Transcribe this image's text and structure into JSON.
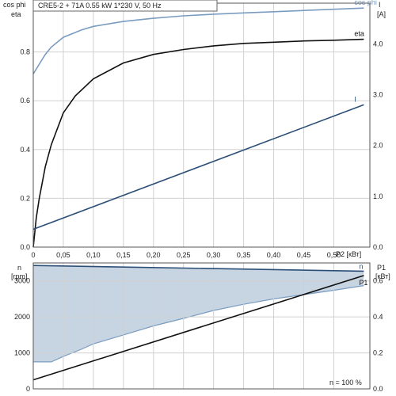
{
  "title": "CRE5-2 + 71A   0.55 kW   1*230 V, 50 Hz",
  "chart_data": [
    {
      "type": "line",
      "name": "upper",
      "left_axis_labels": [
        "cos phi",
        "eta"
      ],
      "right_axis_labels": [
        "I",
        "[A]"
      ],
      "xlim": [
        0,
        0.56
      ],
      "ylim_left": [
        0,
        1.0
      ],
      "ylim_right": [
        0,
        4.8
      ],
      "x_ticks": [
        "0",
        "0,05",
        "0,10",
        "0,15",
        "0,20",
        "0,25",
        "0,30",
        "0,35",
        "0,40",
        "0,45",
        "0,50"
      ],
      "x_tick_values": [
        0,
        0.05,
        0.1,
        0.15,
        0.2,
        0.25,
        0.3,
        0.35,
        0.4,
        0.45,
        0.5
      ],
      "x_unit_label": "P2 [кВт]",
      "y_left_ticks": [
        "0.0",
        "0.2",
        "0.4",
        "0.6",
        "0.8"
      ],
      "y_left_tick_values": [
        0,
        0.2,
        0.4,
        0.6,
        0.8
      ],
      "y_right_ticks": [
        "0.0",
        "1.0",
        "2.0",
        "3.0",
        "4.0"
      ],
      "y_right_tick_values": [
        0,
        1.0,
        2.0,
        3.0,
        4.0
      ],
      "grid": true,
      "series": [
        {
          "name": "cos phi",
          "axis": "left",
          "color": "#7a9cc0",
          "x": [
            0,
            0.01,
            0.02,
            0.03,
            0.05,
            0.08,
            0.1,
            0.15,
            0.2,
            0.25,
            0.3,
            0.35,
            0.4,
            0.45,
            0.5,
            0.55
          ],
          "y": [
            0.71,
            0.75,
            0.79,
            0.82,
            0.86,
            0.89,
            0.905,
            0.925,
            0.938,
            0.948,
            0.955,
            0.96,
            0.965,
            0.97,
            0.975,
            0.98
          ]
        },
        {
          "name": "eta",
          "axis": "left",
          "color": "#111111",
          "x": [
            0,
            0.005,
            0.01,
            0.02,
            0.03,
            0.05,
            0.07,
            0.1,
            0.15,
            0.2,
            0.25,
            0.3,
            0.35,
            0.4,
            0.45,
            0.5,
            0.55
          ],
          "y": [
            0,
            0.12,
            0.2,
            0.33,
            0.42,
            0.55,
            0.62,
            0.69,
            0.755,
            0.79,
            0.81,
            0.825,
            0.835,
            0.84,
            0.845,
            0.848,
            0.852
          ]
        },
        {
          "name": "I",
          "axis": "right",
          "color": "#2b4e77",
          "x": [
            0,
            0.55
          ],
          "y": [
            0.35,
            2.8
          ]
        }
      ]
    },
    {
      "type": "line",
      "name": "lower",
      "left_axis_labels": [
        "n",
        "[rpm]"
      ],
      "right_axis_labels": [
        "P1",
        "[кВт]"
      ],
      "xlim": [
        0,
        0.56
      ],
      "ylim_left": [
        0,
        3500
      ],
      "ylim_right": [
        0,
        0.7
      ],
      "y_left_ticks": [
        "0",
        "1000",
        "2000",
        "3000"
      ],
      "y_left_tick_values": [
        0,
        1000,
        2000,
        3000
      ],
      "y_right_ticks": [
        "0.0",
        "0.2",
        "0.4",
        "0.6"
      ],
      "y_right_tick_values": [
        0,
        0.2,
        0.4,
        0.6
      ],
      "grid": true,
      "annotation": "n = 100 %",
      "series": [
        {
          "name": "n",
          "axis": "left",
          "color": "#2b4e77",
          "x": [
            0,
            0.55
          ],
          "y": [
            3430,
            3270
          ]
        },
        {
          "name": "P1",
          "axis": "right",
          "color": "#111111",
          "x": [
            0,
            0.55
          ],
          "y": [
            0.05,
            0.63
          ]
        }
      ],
      "area": {
        "color": "#c7d5e3",
        "edge_color": "#7a9cc0",
        "upper_x": [
          0,
          0.55
        ],
        "upper_y": [
          3430,
          3270
        ],
        "lower_x": [
          0,
          0.03,
          0.05,
          0.08,
          0.1,
          0.15,
          0.2,
          0.25,
          0.3,
          0.35,
          0.4,
          0.45,
          0.5,
          0.55
        ],
        "lower_y": [
          750,
          750,
          900,
          1100,
          1250,
          1500,
          1750,
          1960,
          2180,
          2350,
          2500,
          2620,
          2740,
          2870
        ]
      }
    }
  ]
}
